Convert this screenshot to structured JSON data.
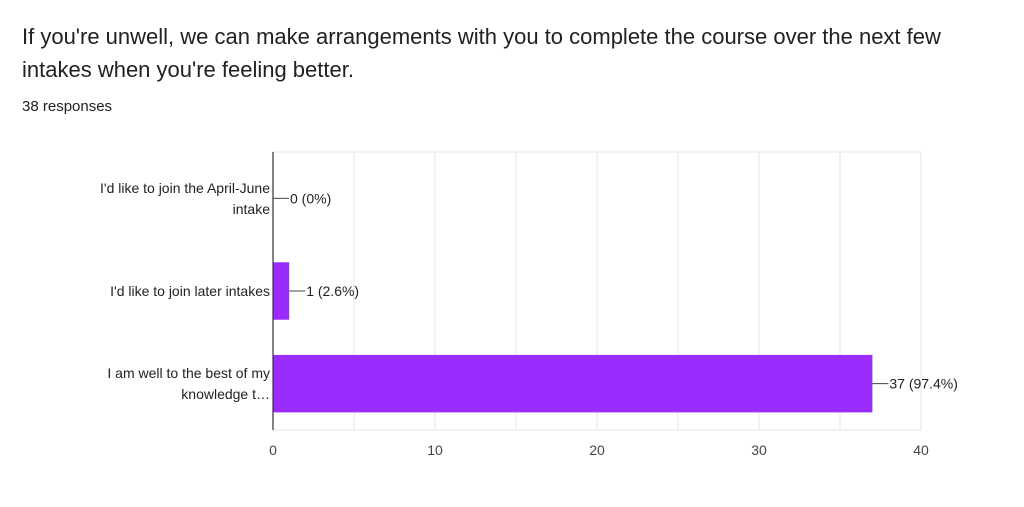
{
  "question": {
    "title": "If you're unwell, we can make arrangements with you to complete the course over the next few intakes when you're feeling better.",
    "response_count": "38 responses"
  },
  "colors": {
    "bar": "#9b2cff",
    "grid": "#e6e6e6",
    "axis": "#333333"
  },
  "chart_data": {
    "type": "bar",
    "orientation": "horizontal",
    "categories": [
      [
        "I'd like to join the April-June",
        "intake"
      ],
      [
        "I'd like to join later intakes"
      ],
      [
        "I am well to the best of my",
        "knowledge t…"
      ]
    ],
    "values": [
      0,
      1,
      37
    ],
    "data_labels": [
      "0 (0%)",
      "1 (2.6%)",
      "37 (97.4%)"
    ],
    "xlim": [
      0,
      40
    ],
    "xticks": [
      0,
      10,
      20,
      30,
      40
    ],
    "grid": true
  }
}
